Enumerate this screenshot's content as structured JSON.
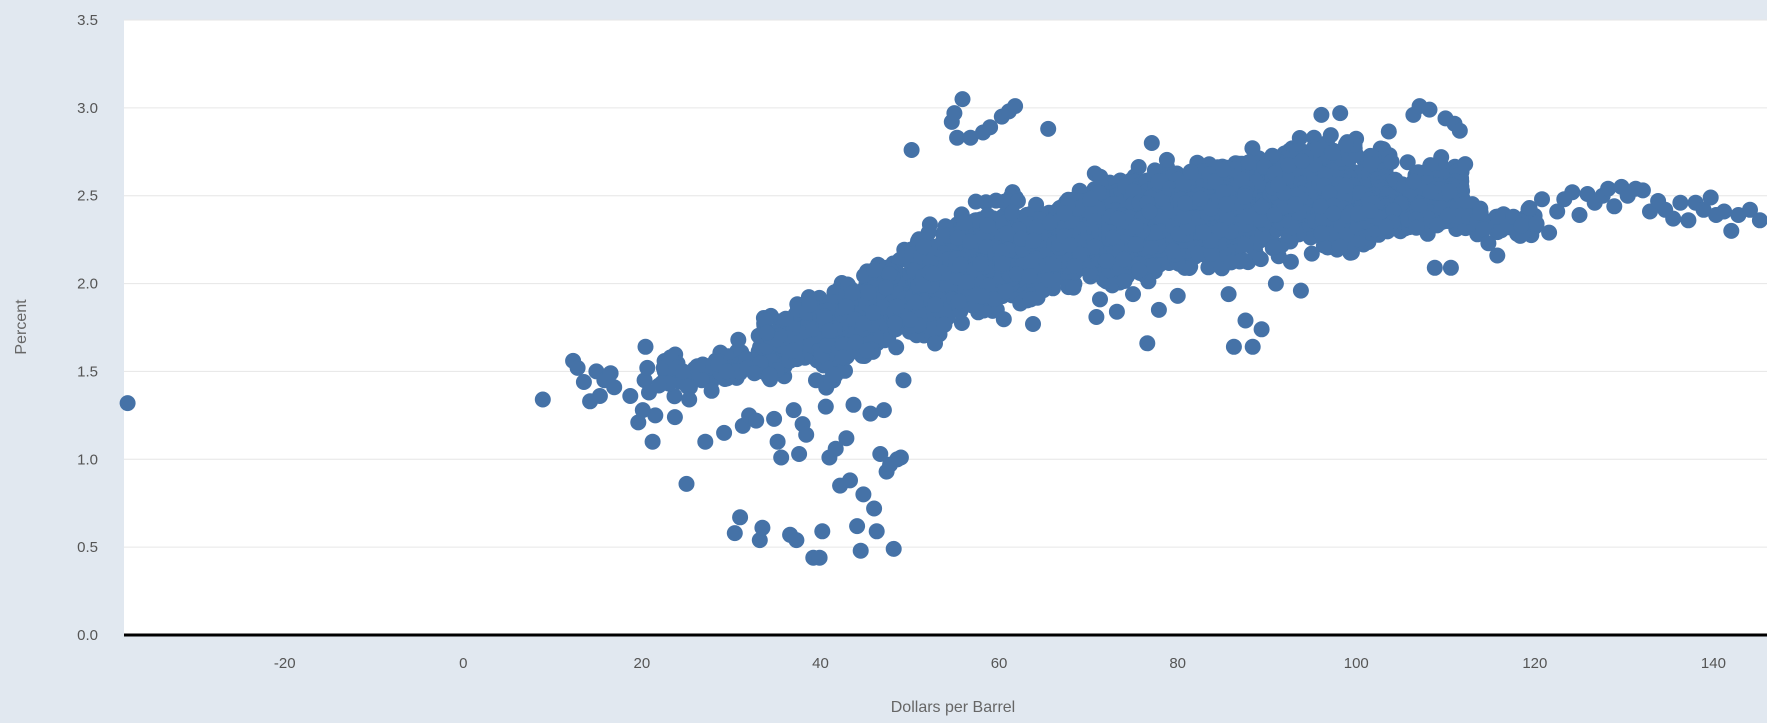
{
  "chart_data": {
    "type": "scatter",
    "title": "",
    "xlabel": "Dollars per Barrel",
    "ylabel": "Percent",
    "xlim": [
      -38,
      146
    ],
    "ylim": [
      0,
      3.5
    ],
    "x_ticks": [
      -20,
      0,
      20,
      40,
      60,
      80,
      100,
      120,
      140
    ],
    "y_ticks": [
      0.0,
      0.5,
      1.0,
      1.5,
      2.0,
      2.5,
      3.0,
      3.5
    ],
    "x_tick_labels": [
      "-20",
      "0",
      "20",
      "40",
      "60",
      "80",
      "100",
      "120",
      "140"
    ],
    "y_tick_labels": [
      "0.0",
      "0.5",
      "1.0",
      "1.5",
      "2.0",
      "2.5",
      "3.0",
      "3.5"
    ],
    "grid": true,
    "legend": "none",
    "marker_color": "#4572a7",
    "points": [
      [
        -37.6,
        1.32
      ],
      [
        8.9,
        1.34
      ],
      [
        12.3,
        1.56
      ],
      [
        12.8,
        1.52
      ],
      [
        13.5,
        1.44
      ],
      [
        14.2,
        1.33
      ],
      [
        14.9,
        1.5
      ],
      [
        15.3,
        1.36
      ],
      [
        15.8,
        1.45
      ],
      [
        16.5,
        1.49
      ],
      [
        16.9,
        1.41
      ],
      [
        18.7,
        1.36
      ],
      [
        19.6,
        1.21
      ],
      [
        20.1,
        1.28
      ],
      [
        20.3,
        1.45
      ],
      [
        20.4,
        1.64
      ],
      [
        20.6,
        1.52
      ],
      [
        20.8,
        1.38
      ],
      [
        21.2,
        1.1
      ],
      [
        21.5,
        1.25
      ],
      [
        21.9,
        1.42
      ],
      [
        23.2,
        1.58
      ],
      [
        23.9,
        1.52
      ],
      [
        23.7,
        1.24
      ],
      [
        24.6,
        1.5
      ],
      [
        25.0,
        0.86
      ],
      [
        25.3,
        1.34
      ],
      [
        26.2,
        1.53
      ],
      [
        26.7,
        1.45
      ],
      [
        27.1,
        1.1
      ],
      [
        27.8,
        1.39
      ],
      [
        28.6,
        1.54
      ],
      [
        29.2,
        1.15
      ],
      [
        29.5,
        1.5
      ],
      [
        30.4,
        0.58
      ],
      [
        30.8,
        1.68
      ],
      [
        31.0,
        0.67
      ],
      [
        31.3,
        1.19
      ],
      [
        31.8,
        1.52
      ],
      [
        32.0,
        1.25
      ],
      [
        32.6,
        1.49
      ],
      [
        32.8,
        1.22
      ],
      [
        33.2,
        0.54
      ],
      [
        33.5,
        0.61
      ],
      [
        34.0,
        1.72
      ],
      [
        34.3,
        1.48
      ],
      [
        34.8,
        1.23
      ],
      [
        35.2,
        1.1
      ],
      [
        35.6,
        1.01
      ],
      [
        36.1,
        1.8
      ],
      [
        36.6,
        0.57
      ],
      [
        37.0,
        1.28
      ],
      [
        37.3,
        0.54
      ],
      [
        37.6,
        1.03
      ],
      [
        38.0,
        1.2
      ],
      [
        38.4,
        1.14
      ],
      [
        38.8,
        1.88
      ],
      [
        39.2,
        0.44
      ],
      [
        39.5,
        1.45
      ],
      [
        39.9,
        0.44
      ],
      [
        40.2,
        0.59
      ],
      [
        40.6,
        1.3
      ],
      [
        41.0,
        1.01
      ],
      [
        41.4,
        1.48
      ],
      [
        41.7,
        1.06
      ],
      [
        42.2,
        0.85
      ],
      [
        42.5,
        1.58
      ],
      [
        42.9,
        1.12
      ],
      [
        43.3,
        0.88
      ],
      [
        43.7,
        1.31
      ],
      [
        44.1,
        0.62
      ],
      [
        44.5,
        0.48
      ],
      [
        44.8,
        0.8
      ],
      [
        45.2,
        1.62
      ],
      [
        45.6,
        1.26
      ],
      [
        46.0,
        0.72
      ],
      [
        46.3,
        0.59
      ],
      [
        46.7,
        1.03
      ],
      [
        47.1,
        1.28
      ],
      [
        47.4,
        0.93
      ],
      [
        47.8,
        0.97
      ],
      [
        48.2,
        0.49
      ],
      [
        48.6,
        1.0
      ],
      [
        49.0,
        1.01
      ],
      [
        49.3,
        1.45
      ],
      [
        50.2,
        2.76
      ],
      [
        54.7,
        2.92
      ],
      [
        55.0,
        2.97
      ],
      [
        55.3,
        2.83
      ],
      [
        55.9,
        3.05
      ],
      [
        56.8,
        2.83
      ],
      [
        58.2,
        2.86
      ],
      [
        59.0,
        2.89
      ],
      [
        60.3,
        2.95
      ],
      [
        61.1,
        2.98
      ],
      [
        61.8,
        3.01
      ],
      [
        63.8,
        1.77
      ],
      [
        65.5,
        2.88
      ],
      [
        70.9,
        1.81
      ],
      [
        71.3,
        1.91
      ],
      [
        73.2,
        1.84
      ],
      [
        75.0,
        1.94
      ],
      [
        76.6,
        1.66
      ],
      [
        77.1,
        2.8
      ],
      [
        77.9,
        1.85
      ],
      [
        80.0,
        1.93
      ],
      [
        85.7,
        1.94
      ],
      [
        86.3,
        1.64
      ],
      [
        87.6,
        1.79
      ],
      [
        88.4,
        1.64
      ],
      [
        89.4,
        1.74
      ],
      [
        91.0,
        2.0
      ],
      [
        93.8,
        1.96
      ],
      [
        96.1,
        2.96
      ],
      [
        98.2,
        2.97
      ],
      [
        106.4,
        2.96
      ],
      [
        107.1,
        3.01
      ],
      [
        108.2,
        2.99
      ],
      [
        110.0,
        2.94
      ],
      [
        111.0,
        2.91
      ],
      [
        111.6,
        2.87
      ],
      [
        112.2,
        2.68
      ],
      [
        108.8,
        2.09
      ],
      [
        110.6,
        2.09
      ],
      [
        114.8,
        2.23
      ],
      [
        115.8,
        2.16
      ],
      [
        116.9,
        2.34
      ],
      [
        117.6,
        2.38
      ],
      [
        118.5,
        2.33
      ],
      [
        119.4,
        2.43
      ],
      [
        120.2,
        2.34
      ],
      [
        120.8,
        2.48
      ],
      [
        121.6,
        2.29
      ],
      [
        122.5,
        2.41
      ],
      [
        123.3,
        2.48
      ],
      [
        124.2,
        2.52
      ],
      [
        125.0,
        2.39
      ],
      [
        125.9,
        2.51
      ],
      [
        126.7,
        2.46
      ],
      [
        127.6,
        2.5
      ],
      [
        128.2,
        2.54
      ],
      [
        128.9,
        2.44
      ],
      [
        129.7,
        2.55
      ],
      [
        130.4,
        2.5
      ],
      [
        131.3,
        2.54
      ],
      [
        132.1,
        2.53
      ],
      [
        132.9,
        2.41
      ],
      [
        133.8,
        2.47
      ],
      [
        134.6,
        2.42
      ],
      [
        135.5,
        2.37
      ],
      [
        136.3,
        2.46
      ],
      [
        137.2,
        2.36
      ],
      [
        138.0,
        2.46
      ],
      [
        138.9,
        2.42
      ],
      [
        139.7,
        2.49
      ],
      [
        140.3,
        2.39
      ],
      [
        141.2,
        2.41
      ],
      [
        142.0,
        2.3
      ],
      [
        142.8,
        2.39
      ],
      [
        144.1,
        2.42
      ],
      [
        145.2,
        2.36
      ]
    ],
    "dense_bands": [
      {
        "x": [
          22,
          46
        ],
        "y_center": [
          1.46,
          1.66
        ],
        "y_spread": 0.08,
        "count": 140,
        "seed": 11
      },
      {
        "x": [
          33,
          50
        ],
        "y_center": [
          1.62,
          1.98
        ],
        "y_spread": 0.16,
        "count": 260,
        "seed": 23
      },
      {
        "x": [
          40,
          62
        ],
        "y_center": [
          1.65,
          2.3
        ],
        "y_spread": 0.22,
        "count": 560,
        "seed": 37
      },
      {
        "x": [
          50,
          76
        ],
        "y_center": [
          1.95,
          2.38
        ],
        "y_spread": 0.24,
        "count": 700,
        "seed": 41
      },
      {
        "x": [
          60,
          80
        ],
        "y_center": [
          2.15,
          2.48
        ],
        "y_spread": 0.2,
        "count": 560,
        "seed": 53
      },
      {
        "x": [
          72,
          104
        ],
        "y_center": [
          2.25,
          2.55
        ],
        "y_spread": 0.24,
        "count": 1000,
        "seed": 67
      },
      {
        "x": [
          80,
          100
        ],
        "y_center": [
          2.45,
          2.66
        ],
        "y_spread": 0.17,
        "count": 450,
        "seed": 71
      },
      {
        "x": [
          96,
          112
        ],
        "y_center": [
          2.35,
          2.55
        ],
        "y_spread": 0.15,
        "count": 340,
        "seed": 83
      },
      {
        "x": [
          100,
          120
        ],
        "y_center": [
          2.4,
          2.34
        ],
        "y_spread": 0.07,
        "count": 170,
        "seed": 97
      }
    ]
  }
}
